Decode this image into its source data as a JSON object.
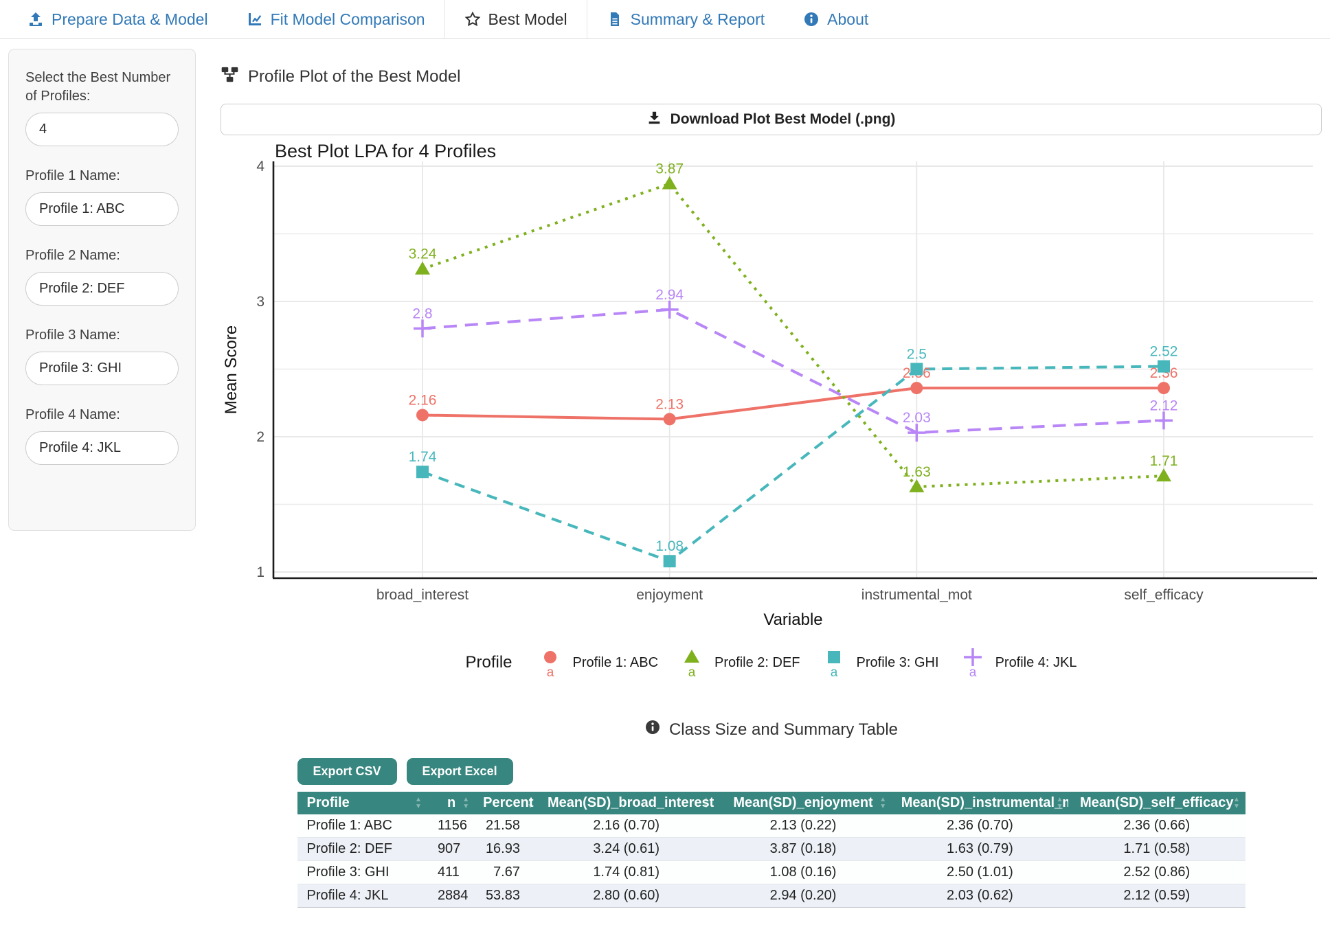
{
  "colors": {
    "tab_blue": "#3279B7",
    "active_tab_text": "#2F2F2F",
    "table_teal": "#37867F",
    "row_alt": "#EDF1F7"
  },
  "tabs": [
    {
      "label": "Prepare Data & Model",
      "icon": "upload-icon",
      "active": false
    },
    {
      "label": "Fit Model Comparison",
      "icon": "chart-line-icon",
      "active": false
    },
    {
      "label": "Best Model",
      "icon": "star-icon",
      "active": true
    },
    {
      "label": "Summary & Report",
      "icon": "file-icon",
      "active": false
    },
    {
      "label": "About",
      "icon": "info-icon",
      "active": false
    }
  ],
  "sidebar": {
    "fields": [
      {
        "label": "Select the Best Number of Profiles:",
        "value": "4"
      },
      {
        "label": "Profile 1 Name:",
        "value": "Profile 1: ABC"
      },
      {
        "label": "Profile 2 Name:",
        "value": "Profile 2: DEF"
      },
      {
        "label": "Profile 3 Name:",
        "value": "Profile 3: GHI"
      },
      {
        "label": "Profile 4 Name:",
        "value": "Profile 4: JKL"
      }
    ]
  },
  "main": {
    "plot_heading": "Profile Plot of the Best Model",
    "download_label": "Download Plot Best Model (.png)"
  },
  "chart_data": {
    "type": "line",
    "title": "Best Plot LPA for 4 Profiles",
    "xlabel": "Variable",
    "ylabel": "Mean Score",
    "ylim": [
      1,
      4
    ],
    "yticks": [
      1,
      2,
      3,
      4
    ],
    "grid": true,
    "legend_title": "Profile",
    "legend_position": "bottom",
    "categories": [
      "broad_interest",
      "enjoyment",
      "instrumental_mot",
      "self_efficacy"
    ],
    "series": [
      {
        "name": "Profile 1: ABC",
        "color": "#EE7268",
        "marker": "circle",
        "line": "solid",
        "values": [
          2.16,
          2.13,
          2.36,
          2.36
        ],
        "labels": [
          "2.16",
          "2.13",
          "2.36",
          "2.36"
        ]
      },
      {
        "name": "Profile 2: DEF",
        "color": "#7FB01E",
        "marker": "triangle",
        "line": "dotted",
        "values": [
          3.24,
          3.87,
          1.63,
          1.71
        ],
        "labels": [
          "3.24",
          "3.87",
          "1.63",
          "1.71"
        ]
      },
      {
        "name": "Profile 3: GHI",
        "color": "#47B7BC",
        "marker": "square",
        "line": "dashed",
        "values": [
          1.74,
          1.08,
          2.5,
          2.52
        ],
        "labels": [
          "1.74",
          "1.08",
          "2.5",
          "2.52"
        ]
      },
      {
        "name": "Profile 4: JKL",
        "color": "#B886F6",
        "marker": "plus",
        "line": "longdash",
        "values": [
          2.8,
          2.94,
          2.03,
          2.12
        ],
        "labels": [
          "2.8",
          "2.94",
          "2.03",
          "2.12"
        ]
      }
    ]
  },
  "table_section": {
    "heading": "Class Size and Summary Table",
    "export_csv": "Export CSV",
    "export_excel": "Export Excel",
    "columns": [
      {
        "label": "Profile",
        "align": "left"
      },
      {
        "label": "n",
        "align": "right"
      },
      {
        "label": "Percent",
        "align": "right"
      },
      {
        "label": "Mean(SD)_broad_interest",
        "align": "center"
      },
      {
        "label": "Mean(SD)_enjoyment",
        "align": "center"
      },
      {
        "label": "Mean(SD)_instrumental_mot",
        "align": "center"
      },
      {
        "label": "Mean(SD)_self_efficacy",
        "align": "center"
      }
    ],
    "rows": [
      [
        "Profile 1: ABC",
        "1156",
        "21.58",
        "2.16 (0.70)",
        "2.13 (0.22)",
        "2.36 (0.70)",
        "2.36 (0.66)"
      ],
      [
        "Profile 2: DEF",
        "907",
        "16.93",
        "3.24 (0.61)",
        "3.87 (0.18)",
        "1.63 (0.79)",
        "1.71 (0.58)"
      ],
      [
        "Profile 3: GHI",
        "411",
        "7.67",
        "1.74 (0.81)",
        "1.08 (0.16)",
        "2.50 (1.01)",
        "2.52 (0.86)"
      ],
      [
        "Profile 4: JKL",
        "2884",
        "53.83",
        "2.80 (0.60)",
        "2.94 (0.20)",
        "2.03 (0.62)",
        "2.12 (0.59)"
      ]
    ]
  }
}
